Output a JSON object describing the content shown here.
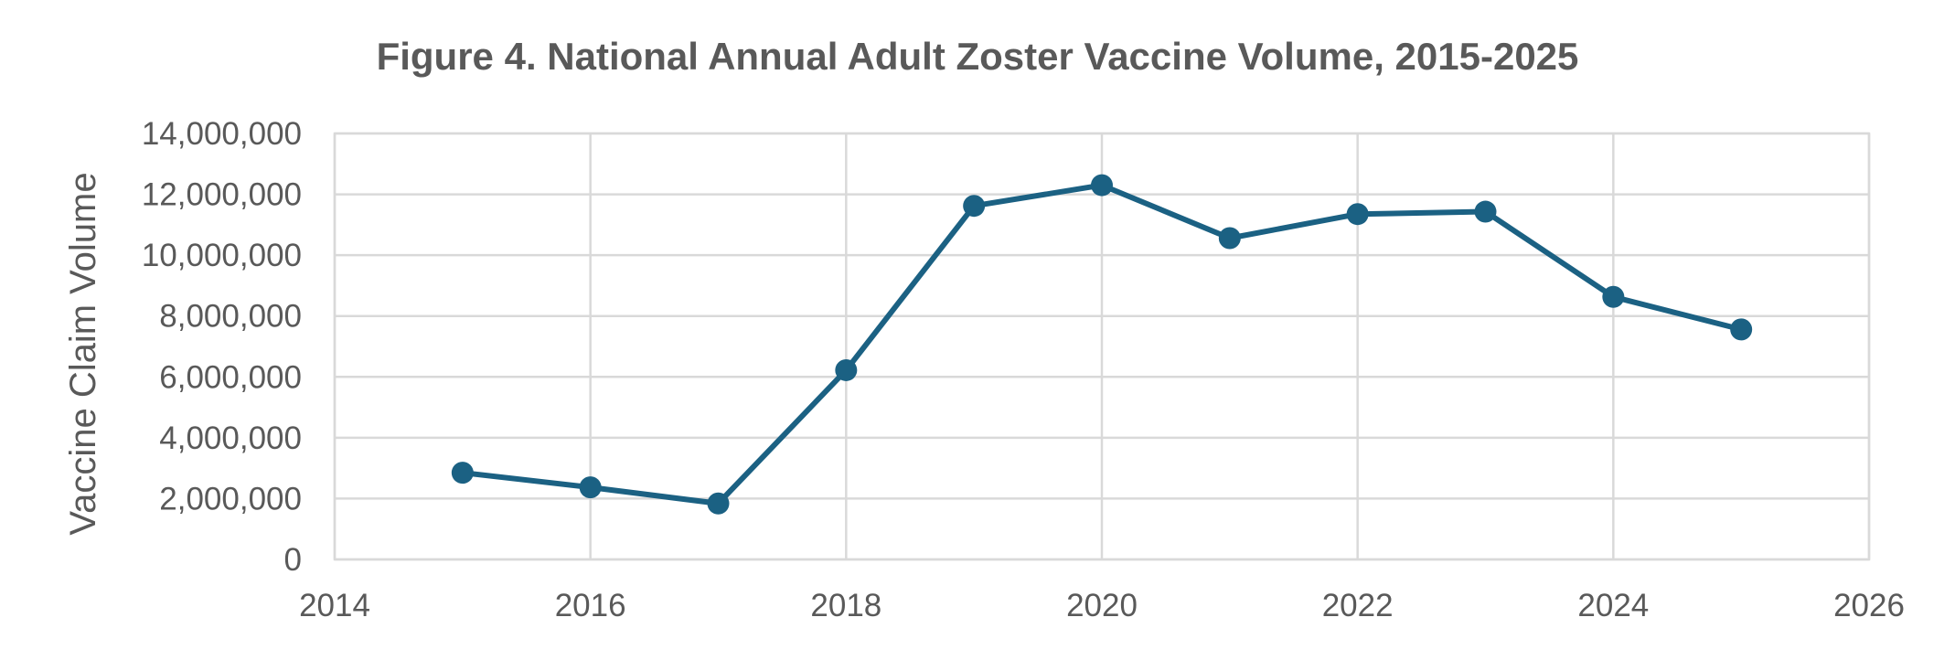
{
  "chart_data": {
    "type": "scatter",
    "title": "Figure 4. National Annual Adult Zoster Vaccine Volume, 2015-2025",
    "xlabel": "",
    "ylabel": "Vaccine Claim Volume",
    "xlim": [
      2014,
      2026
    ],
    "ylim": [
      0,
      14000000
    ],
    "x_ticks": [
      2014,
      2016,
      2018,
      2020,
      2022,
      2024,
      2026
    ],
    "y_ticks": [
      0,
      2000000,
      4000000,
      6000000,
      8000000,
      10000000,
      12000000,
      14000000
    ],
    "x_tick_labels": [
      "2014",
      "2016",
      "2018",
      "2020",
      "2022",
      "2024",
      "2026"
    ],
    "y_tick_labels": [
      "0",
      "2,000,000",
      "4,000,000",
      "6,000,000",
      "8,000,000",
      "10,000,000",
      "12,000,000",
      "14,000,000"
    ],
    "grid": true,
    "legend": "none",
    "series": [
      {
        "color": "#1b6183",
        "marker": "circle",
        "line": "straight",
        "points": [
          {
            "x": 2015,
            "y": 2850000
          },
          {
            "x": 2016,
            "y": 2370000
          },
          {
            "x": 2017,
            "y": 1840000
          },
          {
            "x": 2018,
            "y": 6220000
          },
          {
            "x": 2019,
            "y": 11620000
          },
          {
            "x": 2020,
            "y": 12300000
          },
          {
            "x": 2021,
            "y": 10560000
          },
          {
            "x": 2022,
            "y": 11350000
          },
          {
            "x": 2023,
            "y": 11430000
          },
          {
            "x": 2024,
            "y": 8630000
          },
          {
            "x": 2025,
            "y": 7560000
          }
        ]
      }
    ]
  }
}
